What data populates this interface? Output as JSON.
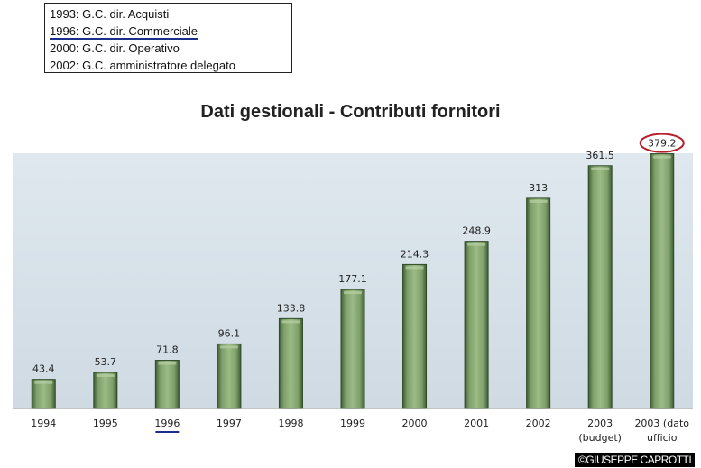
{
  "legend_box": {
    "items": [
      "1993: G.C. dir. Acquisti",
      "1996: G.C. dir. Commerciale",
      "2000: G.C. dir. Operativo",
      "2002: G.C. amministratore delegato"
    ]
  },
  "watermark": "©GIUSEPPE CAPROTTI",
  "colors": {
    "bar": "#7fa06a",
    "bar_dark": "#3f5e35",
    "highlight_circle": "#b81e2a",
    "underline": "#1a2e8a",
    "plot_bg": "#d9e3ea"
  },
  "chart_data": {
    "type": "bar",
    "title": "Dati gestionali - Contributi fornitori",
    "categories": [
      "1994",
      "1995",
      "1996",
      "1997",
      "1998",
      "1999",
      "2000",
      "2001",
      "2002",
      "2003 (budget)",
      "2003 (dato ufficio"
    ],
    "category_lines": [
      [
        "1994"
      ],
      [
        "1995"
      ],
      [
        "1996"
      ],
      [
        "1997"
      ],
      [
        "1998"
      ],
      [
        "1999"
      ],
      [
        "2000"
      ],
      [
        "2001"
      ],
      [
        "2002"
      ],
      [
        "2003",
        "(budget)"
      ],
      [
        "2003 (dato",
        "ufficio"
      ]
    ],
    "values": [
      43.4,
      53.7,
      71.8,
      96.1,
      133.8,
      177.1,
      214.3,
      248.9,
      313,
      361.5,
      379.2
    ],
    "value_labels": [
      "43.4",
      "53.7",
      "71.8",
      "96.1",
      "133.8",
      "177.1",
      "214.3",
      "248.9",
      "313",
      "361.5",
      "379.2"
    ],
    "highlighted_value_index": 10,
    "underlined_category_index": 2,
    "xlabel": "",
    "ylabel": "",
    "ylim": [
      0,
      380
    ],
    "grid": false,
    "legend": "none"
  }
}
